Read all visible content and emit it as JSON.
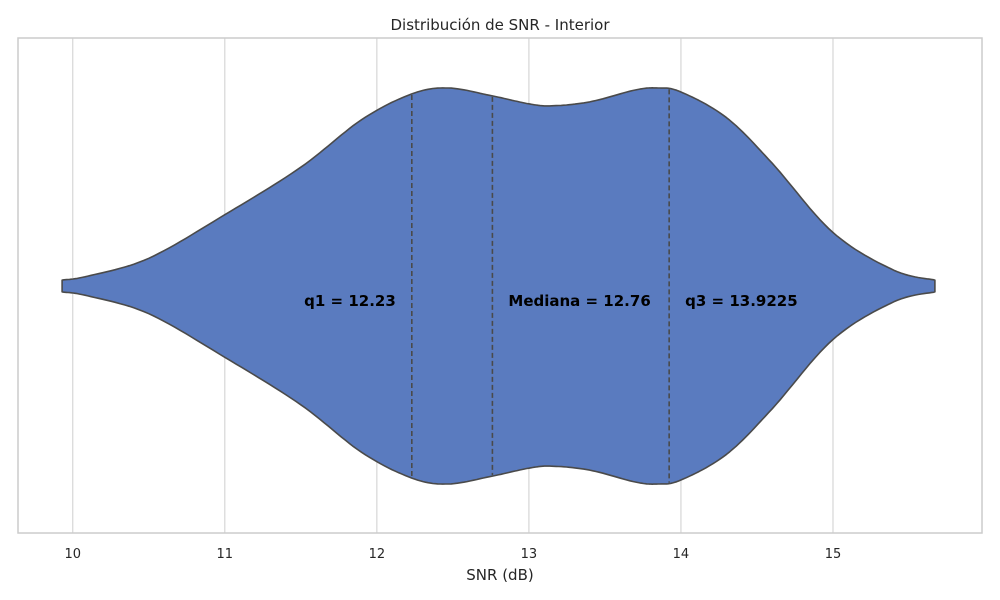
{
  "chart_data": {
    "type": "violin",
    "title": "Distribución de SNR - Interior",
    "xlabel": "SNR (dB)",
    "ylabel": "",
    "xlim": [
      9.64,
      15.98
    ],
    "xticks": [
      10,
      11,
      12,
      13,
      14,
      15
    ],
    "grid": "vertical",
    "fill_color": "#5a7bbf",
    "edge_color": "#4a4a4a",
    "density_profile": {
      "x": [
        9.93,
        10.1,
        10.5,
        11.0,
        11.5,
        11.9,
        12.23,
        12.47,
        12.76,
        13.0,
        13.15,
        13.4,
        13.7,
        13.85,
        14.0,
        14.3,
        14.6,
        15.0,
        15.4,
        15.67
      ],
      "half_width": [
        0.03,
        0.05,
        0.14,
        0.36,
        0.6,
        0.84,
        0.97,
        1.0,
        0.96,
        0.92,
        0.91,
        0.93,
        0.99,
        1.0,
        0.98,
        0.85,
        0.62,
        0.27,
        0.08,
        0.03
      ]
    },
    "quartiles": {
      "q1": 12.23,
      "median": 12.76,
      "q3": 13.9225
    },
    "annotations": [
      {
        "text": "q1 = 12.23",
        "x": 12.23
      },
      {
        "text": "Mediana = 12.76",
        "x": 12.76
      },
      {
        "text": "q3 = 13.9225",
        "x": 13.9225
      }
    ]
  }
}
